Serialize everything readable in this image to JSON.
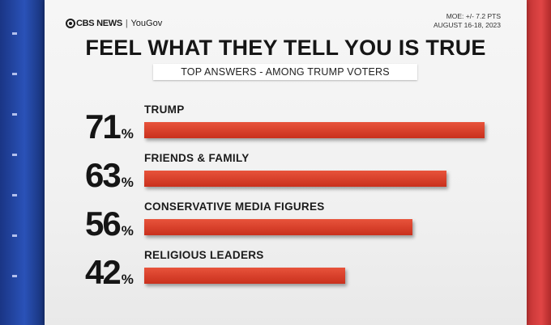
{
  "header": {
    "brand_cbs": "CBS NEWS",
    "brand_sep": "|",
    "brand_yougov": "YouGov",
    "moe_line1": "MOE: +/- 7.2 PTS",
    "moe_line2": "AUGUST 16-18, 2023"
  },
  "chart_data": {
    "type": "bar",
    "title": "FEEL WHAT THEY TELL YOU IS TRUE",
    "subtitle": "TOP ANSWERS - AMONG TRUMP VOTERS",
    "categories": [
      "TRUMP",
      "FRIENDS & FAMILY",
      "CONSERVATIVE MEDIA FIGURES",
      "RELIGIOUS LEADERS"
    ],
    "values": [
      71,
      63,
      56,
      42
    ],
    "value_labels": [
      "71",
      "63",
      "56",
      "42"
    ],
    "unit": "%",
    "xlim": [
      0,
      71
    ],
    "bar_color": "#d63b25"
  }
}
